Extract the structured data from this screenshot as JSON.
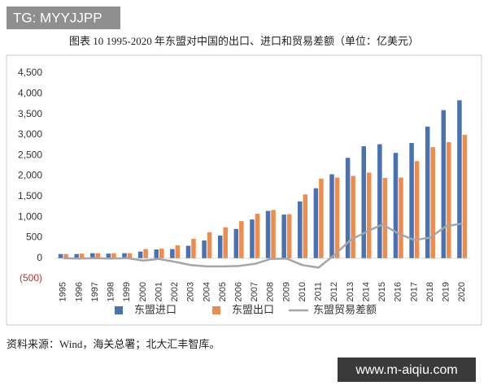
{
  "chart_data": {
    "type": "bar",
    "title": "图表 10 1995-2020 年东盟对中国的出口、进口和贸易差额（单位：亿美元）",
    "categories": [
      "1995",
      "1996",
      "1997",
      "1998",
      "1999",
      "2000",
      "2001",
      "2002",
      "2003",
      "2004",
      "2005",
      "2006",
      "2007",
      "2008",
      "2009",
      "2010",
      "2011",
      "2012",
      "2013",
      "2014",
      "2015",
      "2016",
      "2017",
      "2018",
      "2019",
      "2020"
    ],
    "series": [
      {
        "name": "东盟进口",
        "type": "bar",
        "color": "#4a72b0",
        "values": [
          100,
          100,
          120,
          110,
          120,
          160,
          210,
          220,
          300,
          430,
          550,
          710,
          940,
          1150,
          1060,
          1380,
          1700,
          2040,
          2440,
          2720,
          2770,
          2560,
          2800,
          3200,
          3600,
          3840
        ]
      },
      {
        "name": "东盟出口",
        "type": "bar",
        "color": "#ed8c4c",
        "values": [
          100,
          110,
          120,
          120,
          120,
          220,
          230,
          310,
          470,
          630,
          750,
          900,
          1080,
          1170,
          1070,
          1550,
          1930,
          1960,
          2000,
          2080,
          1950,
          1960,
          2360,
          2700,
          2820,
          3000
        ]
      },
      {
        "name": "东盟贸易差额",
        "type": "line",
        "color": "#a6a6a6",
        "values": [
          0,
          -10,
          0,
          -10,
          0,
          -60,
          -20,
          -90,
          -170,
          -200,
          -200,
          -190,
          -140,
          -20,
          -10,
          -170,
          -230,
          80,
          440,
          640,
          820,
          600,
          440,
          500,
          780,
          840
        ]
      }
    ],
    "ylim": [
      -500,
      4500
    ],
    "yticks": [
      {
        "value": -500,
        "label": "(500)"
      },
      0,
      500,
      {
        "value": 1000,
        "label": "1,000"
      },
      {
        "value": 1500,
        "label": "1,500"
      },
      {
        "value": 2000,
        "label": "2,000"
      },
      {
        "value": 2500,
        "label": "2,500"
      },
      {
        "value": 3000,
        "label": "3,000"
      },
      {
        "value": 3500,
        "label": "3,500"
      },
      {
        "value": 4000,
        "label": "4,000"
      },
      {
        "value": 4500,
        "label": "4,500"
      }
    ],
    "grid": false,
    "legend": "bottom",
    "source": "资料来源：Wind，海关总署；北大汇丰智库。",
    "watermarks": [
      "TG: MYYJJPP",
      "www.m-aiqiu.com"
    ]
  }
}
